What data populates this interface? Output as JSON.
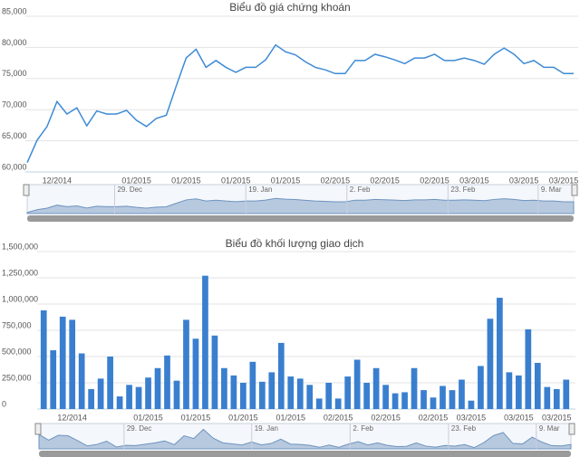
{
  "chart_data": [
    {
      "type": "line",
      "title": "Biểu đồ giá chứng khoán",
      "color": "#3d8bd6",
      "grid": true,
      "categories": [
        null,
        null,
        null,
        "12/2014",
        null,
        null,
        null,
        null,
        null,
        null,
        null,
        "01/2015",
        null,
        null,
        null,
        null,
        "01/2015",
        null,
        null,
        null,
        null,
        "01/2015",
        null,
        null,
        null,
        null,
        "01/2015",
        null,
        null,
        null,
        null,
        "02/2015",
        null,
        null,
        null,
        null,
        "02/2015",
        null,
        null,
        null,
        null,
        "02/2015",
        null,
        null,
        null,
        "03/2015",
        null,
        null,
        null,
        null,
        "03/2015",
        null,
        null,
        null,
        "03/2015",
        null
      ],
      "values": [
        61500,
        65100,
        67300,
        71300,
        69300,
        70300,
        67400,
        69800,
        69300,
        69300,
        69900,
        68300,
        67300,
        68600,
        69100,
        73800,
        78300,
        79700,
        76800,
        77900,
        76800,
        76000,
        76800,
        76800,
        78000,
        80400,
        79300,
        78800,
        77700,
        76800,
        76400,
        75800,
        75800,
        77900,
        77900,
        78900,
        78500,
        78000,
        77400,
        78300,
        78300,
        78900,
        77900,
        77900,
        78300,
        77900,
        77300,
        78900,
        79900,
        78900,
        77400,
        77900,
        76800,
        76800,
        75800,
        75800
      ],
      "ylim": [
        60000,
        85000
      ],
      "yticks": [
        {
          "value": 60000,
          "label": "60,000"
        },
        {
          "value": 65000,
          "label": "65,000"
        },
        {
          "value": 70000,
          "label": "70,000"
        },
        {
          "value": 75000,
          "label": "75,000"
        },
        {
          "value": 80000,
          "label": "80,000"
        },
        {
          "value": 85000,
          "label": "85,000"
        }
      ],
      "navigator_labels": [
        "29. Dec",
        "19. Jan",
        "2. Feb",
        "23. Feb",
        "9. Mar"
      ]
    },
    {
      "type": "bar",
      "title": "Biểu đồ khối lượng giao dịch",
      "color": "#3a7fcf",
      "grid": true,
      "categories": [
        null,
        null,
        null,
        "12/2014",
        null,
        null,
        null,
        null,
        null,
        null,
        null,
        "01/2015",
        null,
        null,
        null,
        null,
        "01/2015",
        null,
        null,
        null,
        null,
        "01/2015",
        null,
        null,
        null,
        null,
        "01/2015",
        null,
        null,
        null,
        null,
        "02/2015",
        null,
        null,
        null,
        null,
        "02/2015",
        null,
        null,
        null,
        null,
        "02/2015",
        null,
        null,
        null,
        "03/2015",
        null,
        null,
        null,
        null,
        "03/2015",
        null,
        null,
        null,
        "03/2015",
        null
      ],
      "values": [
        940000,
        560000,
        880000,
        850000,
        530000,
        190000,
        290000,
        500000,
        120000,
        230000,
        210000,
        300000,
        390000,
        510000,
        270000,
        850000,
        670000,
        1270000,
        700000,
        390000,
        320000,
        250000,
        450000,
        260000,
        350000,
        630000,
        310000,
        290000,
        230000,
        100000,
        250000,
        100000,
        310000,
        470000,
        250000,
        390000,
        230000,
        150000,
        160000,
        390000,
        180000,
        110000,
        220000,
        180000,
        280000,
        80000,
        410000,
        860000,
        1060000,
        350000,
        320000,
        760000,
        440000,
        210000,
        190000,
        280000
      ],
      "ylim": [
        0,
        1500000
      ],
      "yticks": [
        0,
        {
          "value": 250000,
          "label": "250,000"
        },
        {
          "value": 500000,
          "label": "500,000"
        },
        {
          "value": 750000,
          "label": "750,000"
        },
        {
          "value": 1000000,
          "label": "1,000,000"
        },
        {
          "value": 1250000,
          "label": "1,250,000"
        },
        {
          "value": 1500000,
          "label": "1,500,000"
        }
      ],
      "navigator_labels": [
        "29. Dec",
        "19. Jan",
        "2. Feb",
        "23. Feb",
        "9. Mar"
      ]
    }
  ]
}
